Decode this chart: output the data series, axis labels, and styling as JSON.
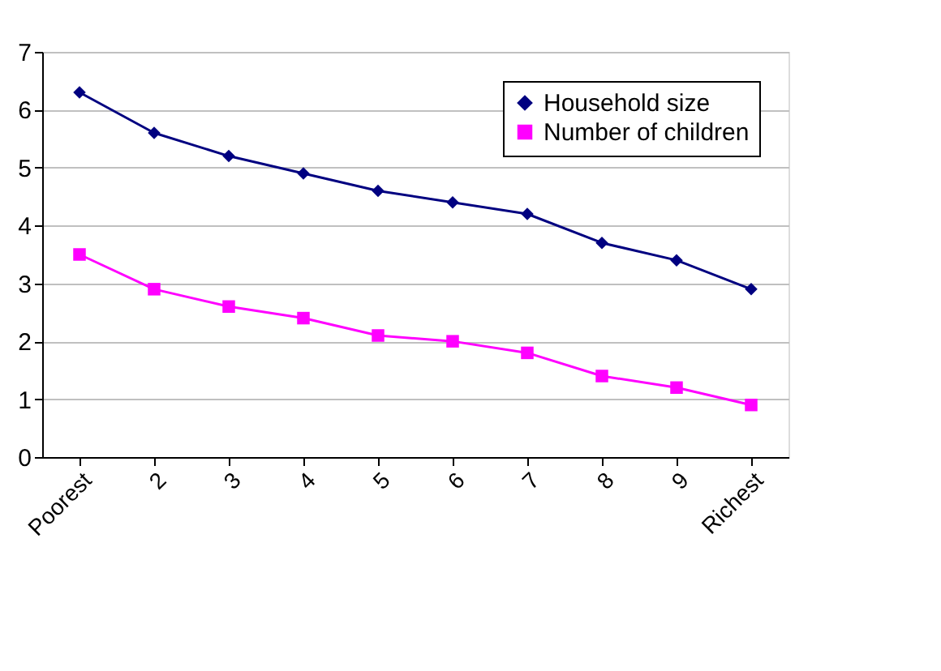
{
  "chart_data": {
    "type": "line",
    "categories": [
      "Poorest",
      "2",
      "3",
      "4",
      "5",
      "6",
      "7",
      "8",
      "9",
      "Richest"
    ],
    "series": [
      {
        "name": "Household size",
        "color": "#000080",
        "marker": "diamond",
        "values": [
          6.3,
          5.6,
          5.2,
          4.9,
          4.6,
          4.4,
          4.2,
          3.7,
          3.4,
          2.9
        ]
      },
      {
        "name": "Number of children",
        "color": "#ff00ff",
        "marker": "square",
        "values": [
          3.5,
          2.9,
          2.6,
          2.4,
          2.1,
          2.0,
          1.8,
          1.4,
          1.2,
          0.9
        ]
      }
    ],
    "ylim": [
      0,
      7
    ],
    "yticks": [
      0,
      1,
      2,
      3,
      4,
      5,
      6,
      7
    ],
    "grid": "y",
    "legend": "top right",
    "line_style": "solid"
  }
}
